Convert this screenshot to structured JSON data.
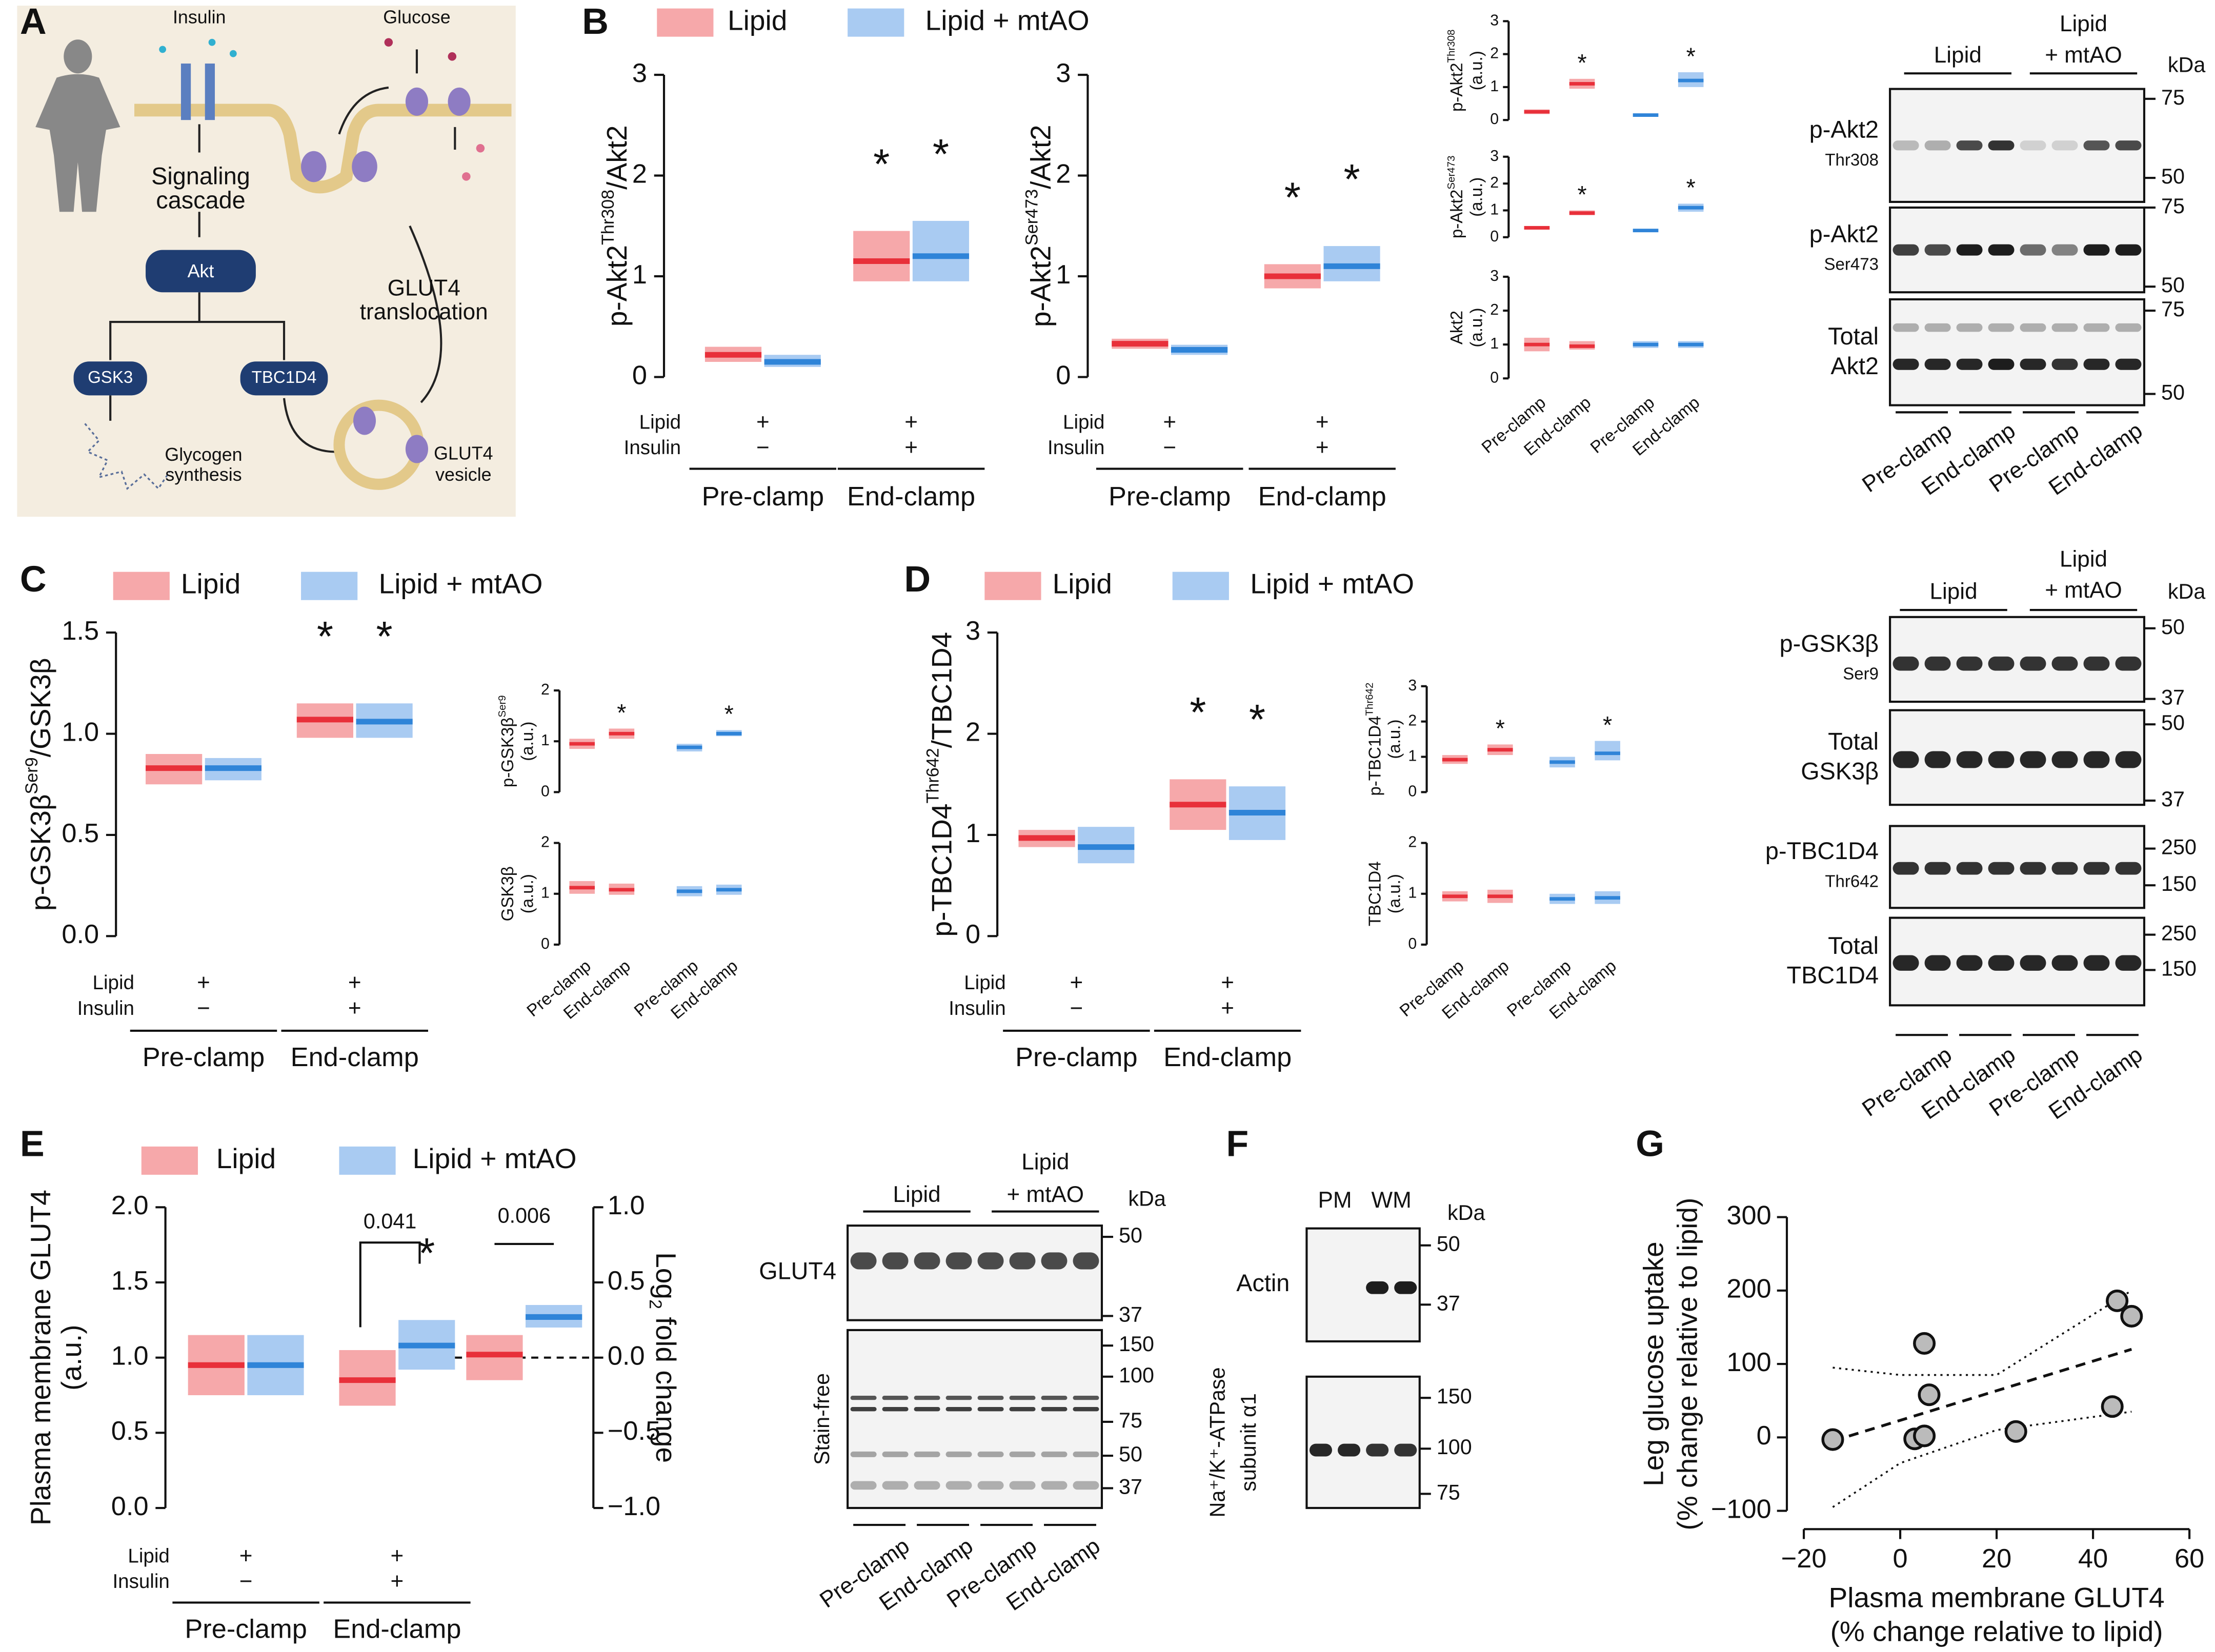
{
  "panel_letters": [
    "A",
    "B",
    "C",
    "D",
    "E",
    "F",
    "G"
  ],
  "diagram": {
    "insulin": "Insulin",
    "glucose": "Glucose",
    "cascade": [
      "Signaling",
      "cascade"
    ],
    "akt": "Akt",
    "gsk3": "GSK3",
    "tbc1d4": "TBC1D4",
    "glycogen": [
      "Glycogen",
      "synthesis"
    ],
    "translocation": [
      "GLUT4",
      "translocation"
    ],
    "vesicle": [
      "GLUT4",
      "vesicle"
    ]
  },
  "chart_data": [
    {
      "type": "box",
      "ylabel": [
        "p-Akt2",
        "Thr308",
        "/Akt2"
      ],
      "categories": [
        "Pre-clamp",
        "End-clamp"
      ],
      "conditions": [
        {
          "label": "Lipid",
          "marks": [
            "+",
            "+"
          ]
        },
        {
          "label": "Insulin",
          "marks": [
            "−",
            "+"
          ]
        }
      ],
      "ylim": [
        0,
        3
      ],
      "yticks": [
        0,
        1,
        2,
        3
      ],
      "series": [
        {
          "name": "Lipid",
          "color": "#e8303a",
          "fill": "#f6a8aa",
          "median": [
            0.22,
            1.15
          ],
          "q1": [
            0.15,
            0.95
          ],
          "q3": [
            0.3,
            1.45
          ],
          "significance": [
            null,
            "*"
          ]
        },
        {
          "name": "Lipid + mtAO",
          "color": "#2f84d8",
          "fill": "#a9cbf2",
          "median": [
            0.15,
            1.2
          ],
          "q1": [
            0.1,
            0.95
          ],
          "q3": [
            0.22,
            1.55
          ],
          "significance": [
            null,
            "*"
          ]
        }
      ]
    },
    {
      "type": "box",
      "ylabel": [
        "p-Akt2",
        "Ser473",
        "/Akt2"
      ],
      "categories": [
        "Pre-clamp",
        "End-clamp"
      ],
      "conditions": [
        {
          "label": "Lipid",
          "marks": [
            "+",
            "+"
          ]
        },
        {
          "label": "Insulin",
          "marks": [
            "−",
            "+"
          ]
        }
      ],
      "ylim": [
        0,
        3
      ],
      "yticks": [
        0,
        1,
        2,
        3
      ],
      "series": [
        {
          "color": "#e8303a",
          "fill": "#f6a8aa",
          "median": [
            0.33,
            1.0
          ],
          "q1": [
            0.28,
            0.88
          ],
          "q3": [
            0.38,
            1.12
          ],
          "significance": [
            null,
            "*"
          ]
        },
        {
          "color": "#2f84d8",
          "fill": "#a9cbf2",
          "median": [
            0.27,
            1.1
          ],
          "q1": [
            0.22,
            0.95
          ],
          "q3": [
            0.32,
            1.3
          ],
          "significance": [
            null,
            "*"
          ]
        }
      ]
    },
    {
      "type": "box",
      "ylabel": [
        "p-Akt2",
        "Thr308"
      ],
      "unit": "(a.u.)",
      "ylim": [
        0,
        3
      ],
      "yticks": [
        0,
        1,
        2,
        3
      ],
      "series": [
        {
          "color": "#e8303a",
          "fill": "#f6a8aa",
          "median": [
            0.25,
            1.1
          ],
          "q1": [
            0.18,
            0.95
          ],
          "q3": [
            0.32,
            1.25
          ],
          "significance": [
            null,
            "*"
          ]
        },
        {
          "color": "#2f84d8",
          "fill": "#a9cbf2",
          "median": [
            0.15,
            1.2
          ],
          "q1": [
            0.1,
            1.0
          ],
          "q3": [
            0.2,
            1.45
          ],
          "significance": [
            null,
            "*"
          ]
        }
      ]
    },
    {
      "type": "box",
      "ylabel": [
        "p-Akt2",
        "Ser473"
      ],
      "unit": "(a.u.)",
      "ylim": [
        0,
        3
      ],
      "yticks": [
        0,
        1,
        2,
        3
      ],
      "series": [
        {
          "color": "#e8303a",
          "fill": "#f6a8aa",
          "median": [
            0.35,
            0.9
          ],
          "q1": [
            0.28,
            0.82
          ],
          "q3": [
            0.42,
            1.0
          ],
          "significance": [
            null,
            "*"
          ]
        },
        {
          "color": "#2f84d8",
          "fill": "#a9cbf2",
          "median": [
            0.25,
            1.1
          ],
          "q1": [
            0.2,
            0.95
          ],
          "q3": [
            0.3,
            1.25
          ],
          "significance": [
            null,
            "*"
          ]
        }
      ]
    },
    {
      "type": "box",
      "ylabel": [
        "Akt2"
      ],
      "unit": "(a.u.)",
      "categories": [
        "Pre-clamp",
        "End-clamp"
      ],
      "ylim": [
        0,
        3
      ],
      "yticks": [
        0,
        1,
        2,
        3
      ],
      "series": [
        {
          "color": "#e8303a",
          "fill": "#f6a8aa",
          "median": [
            1.0,
            0.95
          ],
          "q1": [
            0.8,
            0.85
          ],
          "q3": [
            1.2,
            1.1
          ]
        },
        {
          "color": "#2f84d8",
          "fill": "#a9cbf2",
          "median": [
            1.0,
            1.0
          ],
          "q1": [
            0.9,
            0.9
          ],
          "q3": [
            1.1,
            1.1
          ]
        }
      ]
    },
    {
      "type": "box",
      "ylabel": [
        "p-GSK3β",
        "Ser9",
        "/GSK3β"
      ],
      "categories": [
        "Pre-clamp",
        "End-clamp"
      ],
      "conditions": [
        {
          "label": "Lipid",
          "marks": [
            "+",
            "+"
          ]
        },
        {
          "label": "Insulin",
          "marks": [
            "−",
            "+"
          ]
        }
      ],
      "ylim": [
        0,
        1.5
      ],
      "yticks": [
        {
          "value": 0,
          "label": "0.0"
        },
        0.5,
        {
          "value": 1,
          "label": "1.0"
        },
        {
          "value": 1.5,
          "label": "1.5"
        }
      ],
      "series": [
        {
          "name": "Lipid",
          "color": "#e8303a",
          "fill": "#f6a8aa",
          "median": [
            0.83,
            1.07
          ],
          "q1": [
            0.75,
            0.98
          ],
          "q3": [
            0.9,
            1.15
          ],
          "significance": [
            null,
            "*"
          ]
        },
        {
          "name": "Lipid + mtAO",
          "color": "#2f84d8",
          "fill": "#a9cbf2",
          "median": [
            0.83,
            1.06
          ],
          "q1": [
            0.77,
            0.98
          ],
          "q3": [
            0.88,
            1.15
          ],
          "significance": [
            null,
            "*"
          ]
        }
      ]
    },
    {
      "type": "box",
      "ylabel": [
        "p-GSK3β",
        "Ser9"
      ],
      "unit": "(a.u.)",
      "ylim": [
        0,
        2
      ],
      "yticks": [
        0,
        1,
        2
      ],
      "series": [
        {
          "color": "#e8303a",
          "fill": "#f6a8aa",
          "median": [
            0.95,
            1.15
          ],
          "q1": [
            0.85,
            1.05
          ],
          "q3": [
            1.05,
            1.25
          ],
          "significance": [
            null,
            "*"
          ]
        },
        {
          "color": "#2f84d8",
          "fill": "#a9cbf2",
          "median": [
            0.88,
            1.15
          ],
          "q1": [
            0.8,
            1.1
          ],
          "q3": [
            0.95,
            1.22
          ],
          "significance": [
            null,
            "*"
          ]
        }
      ]
    },
    {
      "type": "box",
      "ylabel": [
        "GSK3β"
      ],
      "unit": "(a.u.)",
      "categories": [
        "Pre-clamp",
        "End-clamp"
      ],
      "ylim": [
        0,
        2
      ],
      "yticks": [
        0,
        1,
        2
      ],
      "series": [
        {
          "color": "#e8303a",
          "fill": "#f6a8aa",
          "median": [
            1.12,
            1.08
          ],
          "q1": [
            1.0,
            0.98
          ],
          "q3": [
            1.25,
            1.2
          ]
        },
        {
          "color": "#2f84d8",
          "fill": "#a9cbf2",
          "median": [
            1.05,
            1.08
          ],
          "q1": [
            0.95,
            0.98
          ],
          "q3": [
            1.15,
            1.18
          ]
        }
      ]
    },
    {
      "type": "box",
      "ylabel": [
        "p-TBC1D4",
        "Thr642",
        "/TBC1D4"
      ],
      "categories": [
        "Pre-clamp",
        "End-clamp"
      ],
      "conditions": [
        {
          "label": "Lipid",
          "marks": [
            "+",
            "+"
          ]
        },
        {
          "label": "Insulin",
          "marks": [
            "−",
            "+"
          ]
        }
      ],
      "ylim": [
        0,
        3
      ],
      "yticks": [
        0,
        1,
        2,
        3
      ],
      "series": [
        {
          "name": "Lipid",
          "color": "#e8303a",
          "fill": "#f6a8aa",
          "median": [
            0.97,
            1.3
          ],
          "q1": [
            0.88,
            1.05
          ],
          "q3": [
            1.05,
            1.55
          ],
          "significance": [
            null,
            "*"
          ]
        },
        {
          "name": "Lipid + mtAO",
          "color": "#2f84d8",
          "fill": "#a9cbf2",
          "median": [
            0.88,
            1.22
          ],
          "q1": [
            0.72,
            0.95
          ],
          "q3": [
            1.08,
            1.48
          ],
          "significance": [
            null,
            "*"
          ]
        }
      ]
    },
    {
      "type": "box",
      "ylabel": [
        "p-TBC1D4",
        "Thr642"
      ],
      "unit": "(a.u.)",
      "ylim": [
        0,
        3
      ],
      "yticks": [
        0,
        1,
        2,
        3
      ],
      "series": [
        {
          "color": "#e8303a",
          "fill": "#f6a8aa",
          "median": [
            0.92,
            1.2
          ],
          "q1": [
            0.8,
            1.05
          ],
          "q3": [
            1.05,
            1.35
          ],
          "significance": [
            null,
            "*"
          ]
        },
        {
          "color": "#2f84d8",
          "fill": "#a9cbf2",
          "median": [
            0.85,
            1.1
          ],
          "q1": [
            0.7,
            0.9
          ],
          "q3": [
            1.0,
            1.45
          ],
          "significance": [
            null,
            "*"
          ]
        }
      ]
    },
    {
      "type": "box",
      "ylabel": [
        "TBC1D4"
      ],
      "unit": "(a.u.)",
      "categories": [
        "Pre-clamp",
        "End-clamp"
      ],
      "ylim": [
        0,
        2
      ],
      "yticks": [
        0,
        1,
        2
      ],
      "series": [
        {
          "color": "#e8303a",
          "fill": "#f6a8aa",
          "median": [
            0.95,
            0.95
          ],
          "q1": [
            0.85,
            0.82
          ],
          "q3": [
            1.05,
            1.08
          ]
        },
        {
          "color": "#2f84d8",
          "fill": "#a9cbf2",
          "median": [
            0.9,
            0.92
          ],
          "q1": [
            0.8,
            0.8
          ],
          "q3": [
            1.0,
            1.05
          ]
        }
      ]
    },
    {
      "type": "box",
      "ylabel": [
        "Plasma membrane GLUT4"
      ],
      "unit": "(a.u.)",
      "categories": [
        "Pre-clamp",
        "End-clamp"
      ],
      "conditions": [
        {
          "label": "Lipid",
          "marks": [
            "+",
            "+"
          ]
        },
        {
          "label": "Insulin",
          "marks": [
            "−",
            "+"
          ]
        }
      ],
      "ylim": [
        0,
        2
      ],
      "yticks": [
        {
          "value": 0,
          "label": "0.0"
        },
        0.5,
        {
          "value": 1,
          "label": "1.0"
        },
        1.5,
        {
          "value": 2,
          "label": "2.0"
        }
      ],
      "series": [
        {
          "name": "Lipid",
          "color": "#e8303a",
          "fill": "#f6a8aa",
          "median": [
            0.95,
            0.85
          ],
          "q1": [
            0.75,
            0.68
          ],
          "q3": [
            1.15,
            1.05
          ]
        },
        {
          "name": "Lipid + mtAO",
          "color": "#2f84d8",
          "fill": "#a9cbf2",
          "median": [
            0.95,
            1.08
          ],
          "q1": [
            0.75,
            0.92
          ],
          "q3": [
            1.15,
            1.25
          ],
          "significance": [
            null,
            "*"
          ]
        }
      ],
      "brackets": [
        "0.041",
        "0.006"
      ],
      "fold_change": {
        "ylabel": [
          "Log",
          "2",
          " fold change"
        ],
        "ylim": [
          -1,
          1
        ],
        "yticks": [
          {
            "value": -1,
            "label": "−1.0"
          },
          {
            "value": -0.5,
            "label": "−0.5"
          },
          {
            "value": 0,
            "label": "0.0"
          },
          0.5,
          {
            "value": 1,
            "label": "1.0"
          }
        ],
        "series": [
          {
            "median": [
              0.02
            ],
            "q1": [
              -0.15
            ],
            "q3": [
              0.15
            ]
          },
          {
            "median": [
              0.27
            ],
            "q1": [
              0.2
            ],
            "q3": [
              0.35
            ]
          }
        ]
      }
    },
    {
      "type": "scatter",
      "xlabel": [
        "Plasma membrane GLUT4",
        "(% change relative to lipid)"
      ],
      "ylabel": [
        "Leg glucose uptake",
        "(% change relative to lipid)"
      ],
      "xlim": [
        -20,
        60
      ],
      "xticks": [
        {
          "value": -20,
          "label": "−20"
        },
        0,
        20,
        40,
        60
      ],
      "ylim": [
        -100,
        300
      ],
      "yticks": [
        {
          "value": -100,
          "label": "−100"
        },
        0,
        100,
        200,
        300
      ],
      "x": [
        -14,
        3,
        5,
        6,
        5,
        24,
        44,
        45,
        48
      ],
      "values": [
        -3,
        -2,
        2,
        58,
        128,
        8,
        42,
        186,
        165
      ],
      "color": "#bbbbbb",
      "trend": {
        "x": [
          -14,
          48
        ],
        "y": [
          -5,
          120
        ]
      },
      "ci": {
        "x": [
          -14,
          0,
          20,
          48
        ],
        "lower": [
          -95,
          -35,
          10,
          35
        ],
        "upper": [
          95,
          85,
          85,
          200
        ]
      }
    }
  ],
  "blots": [
    {
      "kda": "kDa",
      "groups": [
        [
          "Lipid"
        ],
        [
          "Lipid",
          "+ mtAO"
        ]
      ],
      "lanes": [
        "Pre-clamp",
        "End-clamp",
        "Pre-clamp",
        "End-clamp"
      ],
      "rows": [
        {
          "label": [
            "p-Akt2",
            "Thr308"
          ],
          "markers": [
            75,
            50
          ]
        },
        {
          "label": [
            "p-Akt2",
            "Ser473"
          ],
          "markers": [
            75,
            50
          ]
        },
        {
          "label": [
            "Total",
            "Akt2"
          ],
          "markers": [
            75,
            50
          ]
        }
      ]
    },
    {
      "kda": "kDa",
      "groups": [
        [
          "Lipid"
        ],
        [
          "Lipid",
          "+ mtAO"
        ]
      ],
      "lanes": [
        "Pre-clamp",
        "End-clamp",
        "Pre-clamp",
        "End-clamp"
      ],
      "rows": [
        {
          "label": [
            "p-GSK3β",
            "Ser9"
          ],
          "markers": [
            50,
            37
          ]
        },
        {
          "label": [
            "Total",
            "GSK3β"
          ],
          "markers": [
            50,
            37
          ]
        },
        {
          "label": [
            "p-TBC1D4",
            "Thr642"
          ],
          "markers": [
            250,
            150
          ]
        },
        {
          "label": [
            "Total",
            "TBC1D4"
          ],
          "markers": [
            250,
            150
          ]
        }
      ]
    },
    {
      "kda": "kDa",
      "groups": [
        [
          "Lipid"
        ],
        [
          "Lipid",
          "+ mtAO"
        ]
      ],
      "lanes": [
        "Pre-clamp",
        "End-clamp",
        "Pre-clamp",
        "End-clamp"
      ],
      "rows": [
        {
          "label": [
            "GLUT4"
          ],
          "markers": [
            50,
            37
          ]
        },
        {
          "label": [
            "Stain-free"
          ],
          "markers": [
            150,
            100,
            75,
            50,
            37
          ]
        }
      ]
    },
    {
      "kda": "kDa",
      "groups": [
        [
          "PM"
        ],
        [
          "WM"
        ]
      ],
      "rows": [
        {
          "label": [
            "Actin"
          ],
          "markers": [
            50,
            37
          ]
        },
        {
          "label": [
            "Na⁺/K⁺-ATPase",
            "subunit α1"
          ],
          "markers": [
            150,
            100,
            75
          ]
        }
      ]
    }
  ]
}
